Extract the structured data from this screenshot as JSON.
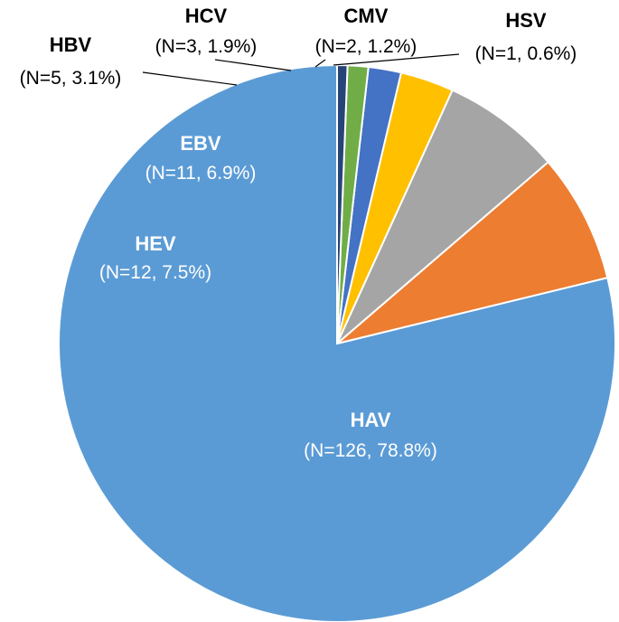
{
  "chart_data": {
    "type": "pie",
    "title": "",
    "slices": [
      {
        "name": "HAV",
        "n_text": "(N=126, 78.8%)",
        "value": 78.8,
        "color": "#5b9bd5",
        "label_color": "#ffffff"
      },
      {
        "name": "HEV",
        "n_text": "(N=12, 7.5%)",
        "value": 7.5,
        "color": "#ed7d31",
        "label_color": "#ffffff"
      },
      {
        "name": "EBV",
        "n_text": "(N=11, 6.9%)",
        "value": 6.9,
        "color": "#a5a5a5",
        "label_color": "#ffffff"
      },
      {
        "name": "HBV",
        "n_text": "(N=5, 3.1%)",
        "value": 3.1,
        "color": "#ffc000",
        "label_color": "#000000"
      },
      {
        "name": "HCV",
        "n_text": "(N=3, 1.9%)",
        "value": 1.9,
        "color": "#4472c4",
        "label_color": "#000000"
      },
      {
        "name": "CMV",
        "n_text": "(N=2, 1.2%)",
        "value": 1.2,
        "color": "#70ad47",
        "label_color": "#000000"
      },
      {
        "name": "HSV",
        "n_text": "(N=1, 0.6%)",
        "value": 0.6,
        "color": "#264478",
        "label_color": "#000000"
      }
    ]
  }
}
